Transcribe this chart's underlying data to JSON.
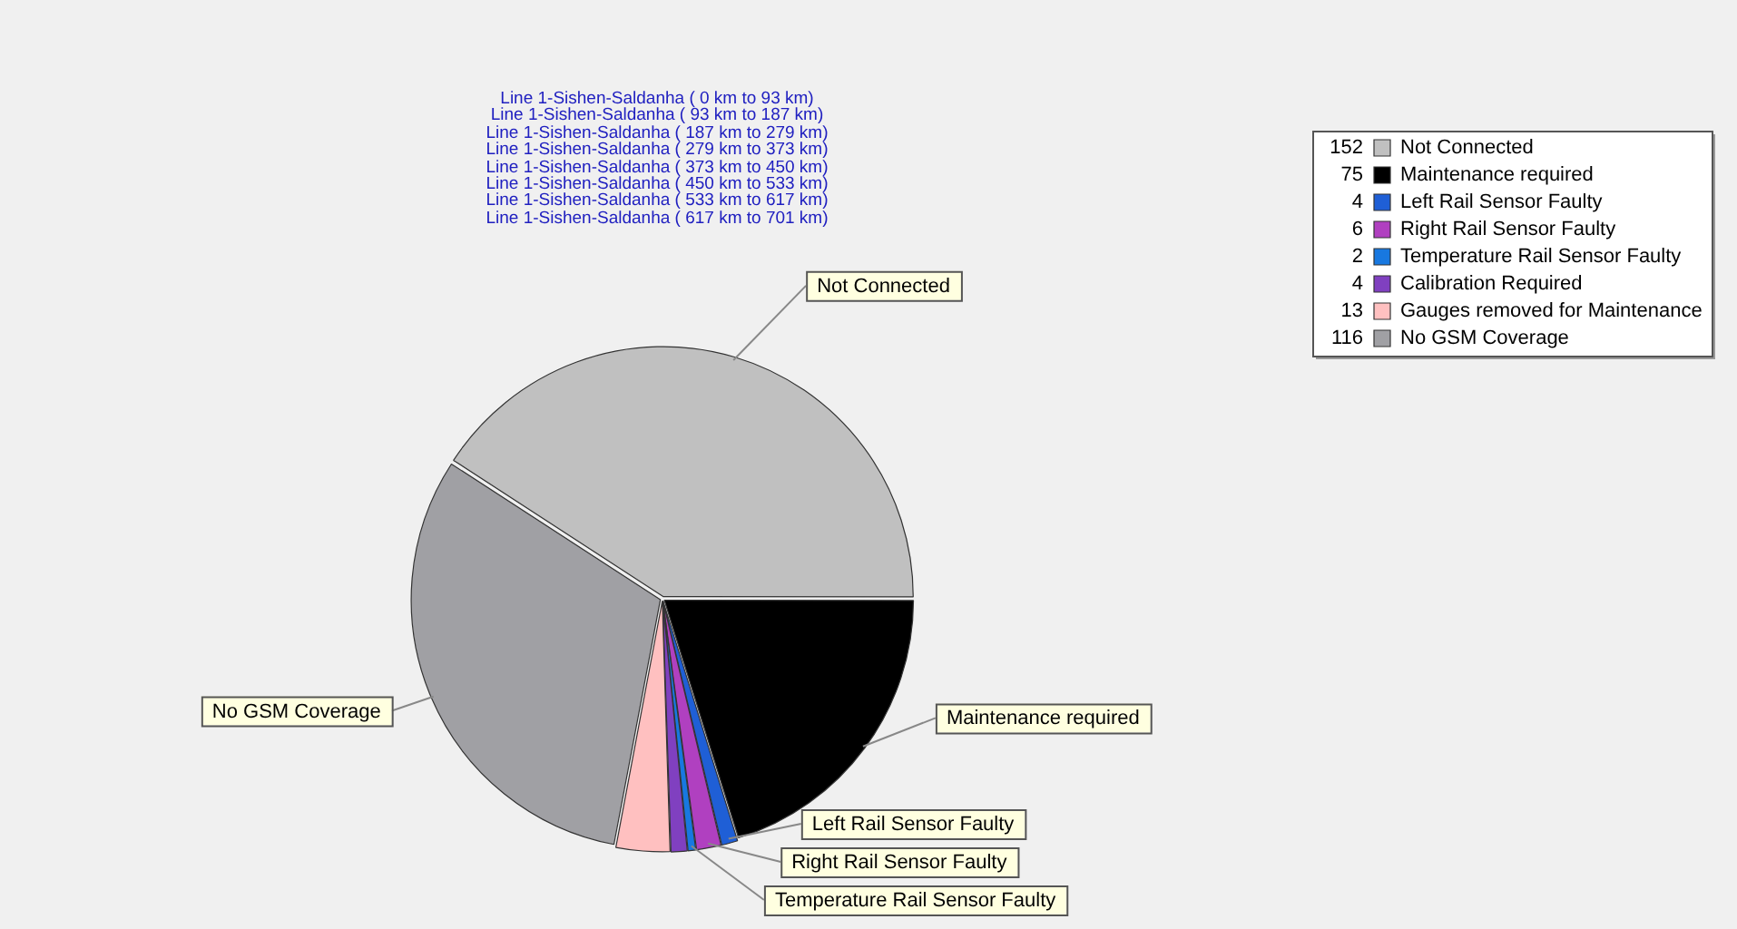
{
  "chart_data": {
    "type": "pie",
    "title": "Line 1-Sishen-Saldanha ( 0 km to 93 km)\nLine 1-Sishen-Saldanha ( 93 km to 187 km)\nLine 1-Sishen-Saldanha ( 187 km to 279 km)\nLine 1-Sishen-Saldanha ( 279 km to 373 km)\nLine 1-Sishen-Saldanha ( 373 km to 450 km)\nLine 1-Sishen-Saldanha ( 450 km to 533 km)\nLine 1-Sishen-Saldanha ( 533 km to 617 km)\nLine 1-Sishen-Saldanha ( 617 km to 701 km)",
    "categories": [
      "Not Connected",
      "Maintenance required",
      "Left Rail Sensor Faulty",
      "Right Rail Sensor Faulty",
      "Temperature Rail Sensor Faulty",
      "Calibration Required",
      "Gauges removed for Maintenance",
      "No GSM Coverage"
    ],
    "values": [
      152,
      75,
      4,
      6,
      2,
      4,
      13,
      116
    ],
    "colors": [
      "#c0c0c0",
      "#000000",
      "#1f5fd6",
      "#b040c0",
      "#1878e0",
      "#8040c0",
      "#ffc0c0",
      "#a0a0a4"
    ],
    "data_labels": true,
    "legend": "top right",
    "annotations": [
      {
        "text": "Not Connected",
        "x": "Not Connected"
      },
      {
        "text": "Maintenance required",
        "x": "Maintenance required"
      },
      {
        "text": "Left Rail Sensor Faulty",
        "x": "Left Rail Sensor Faulty"
      },
      {
        "text": "Right Rail Sensor Faulty",
        "x": "Right Rail Sensor Faulty"
      },
      {
        "text": "Temperature Rail Sensor Faulty",
        "x": "Temperature Rail Sensor Faulty"
      },
      {
        "text": "No GSM Coverage",
        "x": "No GSM Coverage"
      }
    ]
  }
}
